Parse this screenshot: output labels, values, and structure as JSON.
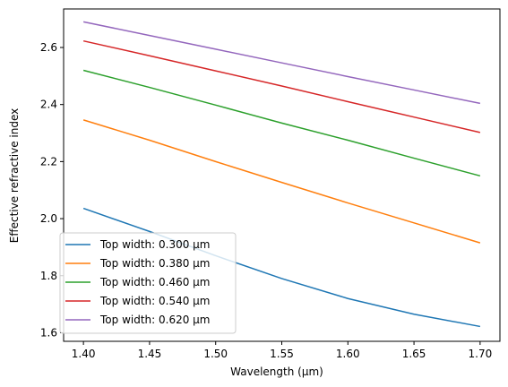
{
  "chart_data": {
    "type": "line",
    "title": "",
    "xlabel": "Wavelength (μm)",
    "ylabel": "Effective refractive index",
    "xlim": [
      1.385,
      1.715
    ],
    "ylim": [
      1.57,
      2.735
    ],
    "xticks": [
      "1.40",
      "1.45",
      "1.50",
      "1.55",
      "1.60",
      "1.65",
      "1.70"
    ],
    "yticks": [
      "1.6",
      "1.8",
      "2.0",
      "2.2",
      "2.4",
      "2.6"
    ],
    "grid": false,
    "legend_position": "lower-left",
    "x": [
      1.4,
      1.45,
      1.5,
      1.55,
      1.6,
      1.65,
      1.7
    ],
    "series": [
      {
        "name": "Top width: 0.300 μm",
        "color": "#1f77b4",
        "values": [
          2.036,
          1.955,
          1.87,
          1.79,
          1.72,
          1.665,
          1.622
        ]
      },
      {
        "name": "Top width: 0.380 μm",
        "color": "#ff7f0e",
        "values": [
          2.346,
          2.275,
          2.2,
          2.127,
          2.055,
          1.985,
          1.915
        ]
      },
      {
        "name": "Top width: 0.460 μm",
        "color": "#2ca02c",
        "values": [
          2.52,
          2.46,
          2.398,
          2.335,
          2.275,
          2.212,
          2.15
        ]
      },
      {
        "name": "Top width: 0.540 μm",
        "color": "#d62728",
        "values": [
          2.623,
          2.571,
          2.518,
          2.465,
          2.41,
          2.356,
          2.302
        ]
      },
      {
        "name": "Top width: 0.620 μm",
        "color": "#9467bd",
        "values": [
          2.69,
          2.642,
          2.594,
          2.546,
          2.498,
          2.451,
          2.404
        ]
      }
    ]
  }
}
